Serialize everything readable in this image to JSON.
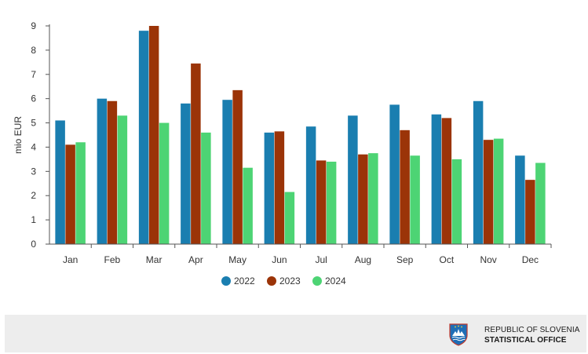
{
  "chart_data": {
    "type": "bar",
    "title": "",
    "xlabel": "",
    "ylabel": "mio EUR",
    "ylim": [
      0,
      9
    ],
    "yticks": [
      "0",
      "1",
      "2",
      "3",
      "4",
      "5",
      "6",
      "7",
      "8",
      "9"
    ],
    "grid": false,
    "legend_position": "bottom-center",
    "categories": [
      "Jan",
      "Feb",
      "Mar",
      "Apr",
      "May",
      "Jun",
      "Jul",
      "Aug",
      "Sep",
      "Oct",
      "Nov",
      "Dec"
    ],
    "series": [
      {
        "name": "2022",
        "color": "#1a7eb0",
        "values": [
          5.1,
          6.0,
          8.8,
          5.8,
          5.95,
          4.6,
          4.85,
          5.3,
          5.75,
          5.35,
          5.9,
          3.65
        ]
      },
      {
        "name": "2023",
        "color": "#9b3408",
        "values": [
          4.1,
          5.9,
          9.0,
          7.45,
          6.35,
          4.65,
          3.45,
          3.7,
          4.7,
          5.2,
          4.3,
          2.65
        ]
      },
      {
        "name": "2024",
        "color": "#4dd474",
        "values": [
          4.2,
          5.3,
          5.0,
          4.6,
          3.15,
          2.15,
          3.4,
          3.75,
          3.65,
          3.5,
          4.35,
          3.35
        ]
      }
    ]
  },
  "footer": {
    "line1": "REPUBLIC OF SLOVENIA",
    "line2": "STATISTICAL OFFICE",
    "logo_icon": "slovenia-coat-of-arms-icon"
  }
}
